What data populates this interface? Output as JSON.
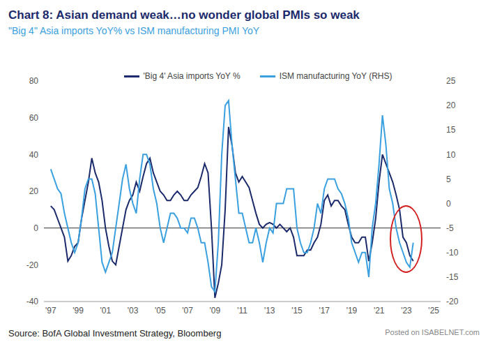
{
  "chart_data": {
    "type": "line",
    "title": "Chart 8: Asian demand weak…no wonder global PMIs so weak",
    "subtitle": "\"Big 4\" Asia imports YoY% vs ISM manufacturing PMI YoY",
    "source": "Source: BofA Global Investment Strategy, Bloomberg",
    "annotations": [
      "Posted on",
      "ISABELNET.com"
    ],
    "legend": "top",
    "grid": false,
    "x": [
      1997,
      1997.25,
      1997.5,
      1997.75,
      1998,
      1998.25,
      1998.5,
      1998.75,
      1999,
      1999.25,
      1999.5,
      1999.75,
      2000,
      2000.25,
      2000.5,
      2000.75,
      2001,
      2001.25,
      2001.5,
      2001.75,
      2002,
      2002.25,
      2002.5,
      2002.75,
      2003,
      2003.25,
      2003.5,
      2003.75,
      2004,
      2004.25,
      2004.5,
      2004.75,
      2005,
      2005.25,
      2005.5,
      2005.75,
      2006,
      2006.25,
      2006.5,
      2006.75,
      2007,
      2007.25,
      2007.5,
      2007.75,
      2008,
      2008.25,
      2008.5,
      2008.75,
      2009,
      2009.25,
      2009.5,
      2009.75,
      2010,
      2010.25,
      2010.5,
      2010.75,
      2011,
      2011.25,
      2011.5,
      2011.75,
      2012,
      2012.25,
      2012.5,
      2012.75,
      2013,
      2013.25,
      2013.5,
      2013.75,
      2014,
      2014.25,
      2014.5,
      2014.75,
      2015,
      2015.25,
      2015.5,
      2015.75,
      2016,
      2016.25,
      2016.5,
      2016.75,
      2017,
      2017.25,
      2017.5,
      2017.75,
      2018,
      2018.25,
      2018.5,
      2018.75,
      2019,
      2019.25,
      2019.5,
      2019.75,
      2020,
      2020.25,
      2020.5,
      2020.75,
      2021,
      2021.25,
      2021.5,
      2021.75,
      2022,
      2022.25,
      2022.5,
      2022.75,
      2023,
      2023.25,
      2023.5
    ],
    "xlim": [
      1996.5,
      2025.5
    ],
    "xticks": [
      {
        "value": 1997,
        "label": "'97"
      },
      {
        "value": 1999,
        "label": "'99"
      },
      {
        "value": 2001,
        "label": "'01"
      },
      {
        "value": 2003,
        "label": "'03"
      },
      {
        "value": 2005,
        "label": "'05"
      },
      {
        "value": 2007,
        "label": "'07"
      },
      {
        "value": 2009,
        "label": "'09"
      },
      {
        "value": 2011,
        "label": "'11"
      },
      {
        "value": 2013,
        "label": "'13"
      },
      {
        "value": 2015,
        "label": "'15"
      },
      {
        "value": 2017,
        "label": "'17"
      },
      {
        "value": 2019,
        "label": "'19"
      },
      {
        "value": 2021,
        "label": "'21"
      },
      {
        "value": 2023,
        "label": "'23"
      },
      {
        "value": 2025,
        "label": "'25"
      }
    ],
    "ylim": [
      -40,
      80
    ],
    "yticks": [
      -40,
      -20,
      0,
      20,
      40,
      60,
      80
    ],
    "y2lim": [
      -20,
      25
    ],
    "y2ticks": [
      -20,
      -15,
      -10,
      -5,
      0,
      5,
      10,
      15,
      20,
      25
    ],
    "series": [
      {
        "name": "'Big 4' Asia imports YoY %",
        "color": "#1b2a6b",
        "values": [
          12,
          10,
          5,
          0,
          -5,
          -18,
          -15,
          -10,
          -8,
          5,
          15,
          25,
          38,
          30,
          25,
          15,
          0,
          -10,
          -18,
          -20,
          -10,
          0,
          10,
          15,
          18,
          25,
          20,
          28,
          35,
          38,
          30,
          25,
          20,
          18,
          15,
          15,
          18,
          20,
          18,
          15,
          15,
          18,
          20,
          22,
          28,
          35,
          30,
          0,
          -38,
          -30,
          -20,
          10,
          55,
          45,
          30,
          25,
          28,
          25,
          22,
          15,
          8,
          2,
          0,
          2,
          3,
          2,
          0,
          2,
          0,
          -2,
          0,
          -5,
          -15,
          -15,
          -15,
          -12,
          -12,
          -8,
          -5,
          2,
          15,
          18,
          12,
          15,
          15,
          12,
          10,
          2,
          -5,
          -8,
          -8,
          -5,
          -5,
          -18,
          -8,
          5,
          25,
          40,
          35,
          30,
          25,
          18,
          10,
          -5,
          -8,
          -15,
          -18
        ]
      },
      {
        "name": "ISM manufacturing YoY (RHS)",
        "color": "#3aa0e0",
        "axis": "y2",
        "values": [
          7,
          5,
          3,
          2,
          -2,
          -5,
          -8,
          -10,
          -8,
          -3,
          3,
          5,
          5,
          2,
          -5,
          -12,
          -14,
          -12,
          -10,
          -5,
          0,
          5,
          8,
          3,
          0,
          -2,
          5,
          10,
          10,
          8,
          3,
          0,
          -5,
          -8,
          -5,
          -2,
          -2,
          -3,
          -5,
          -5,
          -6,
          -3,
          -3,
          -5,
          -8,
          -8,
          -12,
          -17,
          -18,
          -8,
          10,
          20,
          21,
          12,
          5,
          -2,
          -2,
          -5,
          -8,
          -8,
          -5,
          -8,
          -12,
          -8,
          -5,
          -6,
          0,
          0,
          0,
          3,
          3,
          3,
          -5,
          -8,
          -10,
          -10,
          -8,
          -5,
          0,
          -2,
          3,
          5,
          5,
          5,
          3,
          2,
          0,
          -3,
          -8,
          -10,
          -12,
          -10,
          -10,
          -15,
          -5,
          0,
          8,
          18,
          12,
          3,
          0,
          -5,
          -8,
          -10,
          -12,
          -13,
          -8
        ]
      }
    ]
  }
}
